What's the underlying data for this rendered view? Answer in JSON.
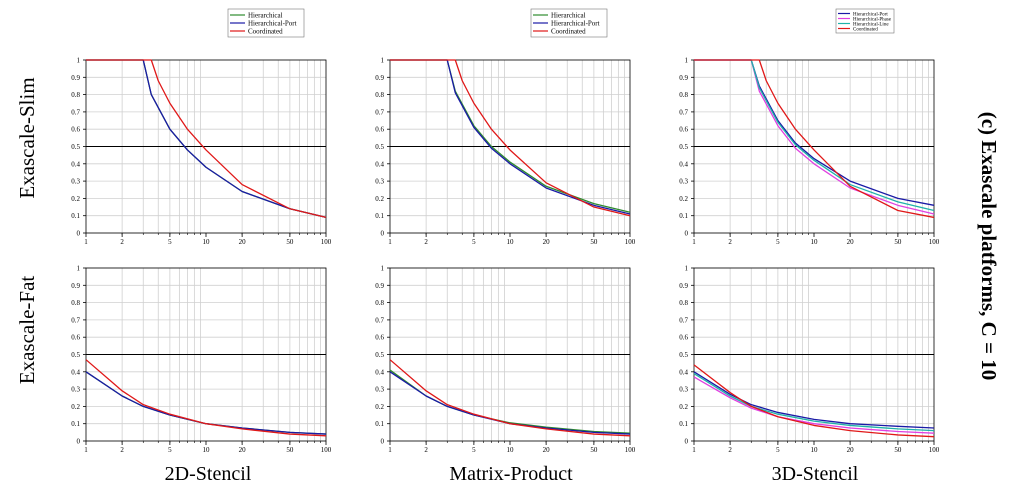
{
  "figure": {
    "side_title": "(c) Exascale platforms, C = 10",
    "row_labels": [
      "Exascale-Slim",
      "Exascale-Fat"
    ],
    "column_labels": [
      "2D-Stencil",
      "Matrix-Product",
      "3D-Stencil"
    ]
  },
  "legends": [
    [
      "Hierarchical",
      "Hierarchical-Port",
      "Coordinated"
    ],
    [
      "Hierarchical",
      "Hierarchical-Port",
      "Coordinated"
    ],
    [
      "Hierarchical-Port",
      "Hierarchical-Phase",
      "Hierarchical-Line",
      "Coordinated"
    ]
  ],
  "colors": {
    "Hierarchical": "#2e8b2e",
    "Hierarchical-Port": "#1a1aa6",
    "Hierarchical-Phase": "#e040e0",
    "Hierarchical-Line": "#20b2aa",
    "Coordinated": "#e01818",
    "reference_line": "#000000"
  },
  "axes": {
    "x_ticks": [
      1,
      2,
      5,
      10,
      20,
      50,
      100
    ],
    "y_ticks": [
      0,
      0.1,
      0.2,
      0.3,
      0.4,
      0.5,
      0.6,
      0.7,
      0.8,
      0.9,
      1
    ],
    "xlim": [
      1,
      100
    ],
    "ylim": [
      0,
      1
    ],
    "xscale": "log",
    "reference_y": 0.5,
    "grid": true
  },
  "chart_data": [
    {
      "type": "line",
      "row": "Exascale-Slim",
      "column": "2D-Stencil",
      "xlim": [
        1,
        100
      ],
      "ylim": [
        0,
        1
      ],
      "xscale": "log",
      "series": [
        {
          "name": "Hierarchical",
          "x": [
            1,
            3,
            3.5,
            5,
            7,
            10,
            20,
            50,
            100
          ],
          "y": [
            1,
            1,
            0.8,
            0.6,
            0.48,
            0.38,
            0.24,
            0.14,
            0.09
          ]
        },
        {
          "name": "Hierarchical-Port",
          "x": [
            1,
            3,
            3.5,
            5,
            7,
            10,
            20,
            50,
            100
          ],
          "y": [
            1,
            1,
            0.8,
            0.6,
            0.48,
            0.38,
            0.24,
            0.14,
            0.09
          ]
        },
        {
          "name": "Coordinated",
          "x": [
            1,
            3.5,
            4,
            5,
            7,
            10,
            20,
            50,
            100
          ],
          "y": [
            1,
            1,
            0.88,
            0.75,
            0.6,
            0.48,
            0.28,
            0.14,
            0.09
          ]
        }
      ]
    },
    {
      "type": "line",
      "row": "Exascale-Slim",
      "column": "Matrix-Product",
      "xlim": [
        1,
        100
      ],
      "ylim": [
        0,
        1
      ],
      "xscale": "log",
      "series": [
        {
          "name": "Hierarchical",
          "x": [
            1,
            3,
            3.5,
            5,
            7,
            10,
            20,
            50,
            100
          ],
          "y": [
            1,
            1,
            0.82,
            0.62,
            0.5,
            0.41,
            0.27,
            0.17,
            0.12
          ]
        },
        {
          "name": "Hierarchical-Port",
          "x": [
            1,
            3,
            3.5,
            5,
            7,
            10,
            20,
            50,
            100
          ],
          "y": [
            1,
            1,
            0.81,
            0.61,
            0.49,
            0.4,
            0.26,
            0.16,
            0.11
          ]
        },
        {
          "name": "Coordinated",
          "x": [
            1,
            3.5,
            4,
            5,
            7,
            10,
            20,
            50,
            100
          ],
          "y": [
            1,
            1,
            0.88,
            0.75,
            0.6,
            0.48,
            0.29,
            0.15,
            0.1
          ]
        }
      ]
    },
    {
      "type": "line",
      "row": "Exascale-Slim",
      "column": "3D-Stencil",
      "xlim": [
        1,
        100
      ],
      "ylim": [
        0,
        1
      ],
      "xscale": "log",
      "series": [
        {
          "name": "Hierarchical-Port",
          "x": [
            1,
            3,
            3.5,
            5,
            7,
            10,
            20,
            50,
            100
          ],
          "y": [
            1,
            1,
            0.85,
            0.65,
            0.52,
            0.43,
            0.3,
            0.2,
            0.16
          ]
        },
        {
          "name": "Hierarchical-Phase",
          "x": [
            1,
            3,
            3.5,
            5,
            7,
            10,
            20,
            50,
            100
          ],
          "y": [
            1,
            1,
            0.82,
            0.62,
            0.49,
            0.4,
            0.26,
            0.16,
            0.11
          ]
        },
        {
          "name": "Hierarchical-Line",
          "x": [
            1,
            3,
            3.5,
            5,
            7,
            10,
            20,
            50,
            100
          ],
          "y": [
            1,
            1,
            0.84,
            0.64,
            0.51,
            0.42,
            0.28,
            0.18,
            0.13
          ]
        },
        {
          "name": "Coordinated",
          "x": [
            1,
            3.5,
            4,
            5,
            7,
            10,
            20,
            50,
            100
          ],
          "y": [
            1,
            1,
            0.88,
            0.75,
            0.6,
            0.48,
            0.27,
            0.13,
            0.09
          ]
        }
      ]
    },
    {
      "type": "line",
      "row": "Exascale-Fat",
      "column": "2D-Stencil",
      "xlim": [
        1,
        100
      ],
      "ylim": [
        0,
        1
      ],
      "xscale": "log",
      "series": [
        {
          "name": "Hierarchical",
          "x": [
            1,
            2,
            3,
            5,
            10,
            20,
            50,
            100
          ],
          "y": [
            0.4,
            0.26,
            0.2,
            0.15,
            0.1,
            0.075,
            0.05,
            0.04
          ]
        },
        {
          "name": "Hierarchical-Port",
          "x": [
            1,
            2,
            3,
            5,
            10,
            20,
            50,
            100
          ],
          "y": [
            0.4,
            0.26,
            0.2,
            0.15,
            0.1,
            0.075,
            0.05,
            0.04
          ]
        },
        {
          "name": "Coordinated",
          "x": [
            1,
            2,
            3,
            5,
            10,
            20,
            50,
            100
          ],
          "y": [
            0.47,
            0.29,
            0.21,
            0.155,
            0.1,
            0.07,
            0.04,
            0.03
          ]
        }
      ]
    },
    {
      "type": "line",
      "row": "Exascale-Fat",
      "column": "Matrix-Product",
      "xlim": [
        1,
        100
      ],
      "ylim": [
        0,
        1
      ],
      "xscale": "log",
      "series": [
        {
          "name": "Hierarchical",
          "x": [
            1,
            2,
            3,
            5,
            10,
            20,
            50,
            100
          ],
          "y": [
            0.41,
            0.26,
            0.2,
            0.15,
            0.105,
            0.08,
            0.055,
            0.045
          ]
        },
        {
          "name": "Hierarchical-Port",
          "x": [
            1,
            2,
            3,
            5,
            10,
            20,
            50,
            100
          ],
          "y": [
            0.4,
            0.26,
            0.2,
            0.15,
            0.1,
            0.075,
            0.05,
            0.04
          ]
        },
        {
          "name": "Coordinated",
          "x": [
            1,
            2,
            3,
            5,
            10,
            20,
            50,
            100
          ],
          "y": [
            0.47,
            0.29,
            0.21,
            0.155,
            0.1,
            0.07,
            0.04,
            0.03
          ]
        }
      ]
    },
    {
      "type": "line",
      "row": "Exascale-Fat",
      "column": "3D-Stencil",
      "xlim": [
        1,
        100
      ],
      "ylim": [
        0,
        1
      ],
      "xscale": "log",
      "series": [
        {
          "name": "Hierarchical-Port",
          "x": [
            1,
            2,
            3,
            5,
            10,
            20,
            50,
            100
          ],
          "y": [
            0.4,
            0.27,
            0.21,
            0.165,
            0.125,
            0.1,
            0.085,
            0.075
          ]
        },
        {
          "name": "Hierarchical-Phase",
          "x": [
            1,
            2,
            3,
            5,
            10,
            20,
            50,
            100
          ],
          "y": [
            0.37,
            0.25,
            0.19,
            0.14,
            0.1,
            0.075,
            0.055,
            0.045
          ]
        },
        {
          "name": "Hierarchical-Line",
          "x": [
            1,
            2,
            3,
            5,
            10,
            20,
            50,
            100
          ],
          "y": [
            0.39,
            0.26,
            0.2,
            0.155,
            0.115,
            0.09,
            0.07,
            0.06
          ]
        },
        {
          "name": "Coordinated",
          "x": [
            1,
            2,
            3,
            5,
            10,
            20,
            50,
            100
          ],
          "y": [
            0.44,
            0.28,
            0.2,
            0.14,
            0.09,
            0.06,
            0.035,
            0.025
          ]
        }
      ]
    }
  ]
}
